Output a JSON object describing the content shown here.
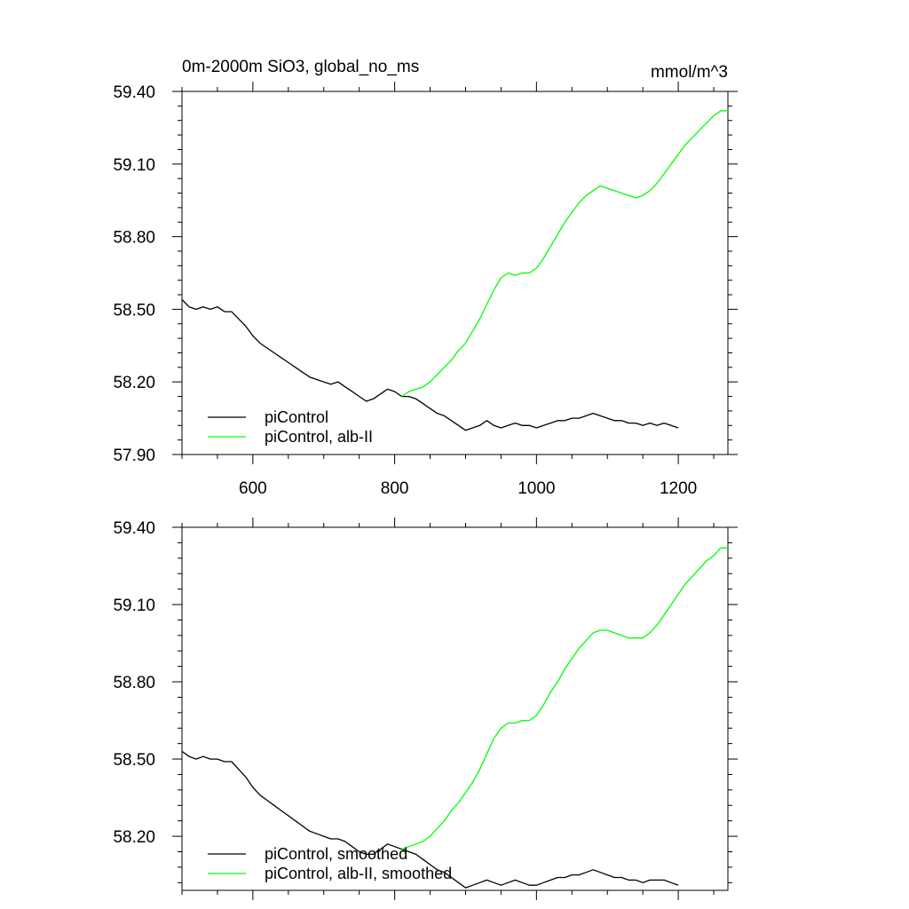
{
  "figure": {
    "title": "0m-2000m SiO3, global_no_ms",
    "units": "mmol/m^3"
  },
  "chart_data": [
    {
      "type": "line",
      "xlim": [
        500,
        1270
      ],
      "ylim": [
        57.9,
        59.4
      ],
      "x_ticks": [
        600,
        800,
        1000,
        1200
      ],
      "x_tick_labels": [
        "600",
        "800",
        "1000",
        "1200"
      ],
      "y_ticks": [
        57.9,
        58.2,
        58.5,
        58.8,
        59.1,
        59.4
      ],
      "y_tick_labels": [
        "57.90",
        "58.20",
        "58.50",
        "58.80",
        "59.10",
        "59.40"
      ],
      "grid": false,
      "legend_position": "bottom-left",
      "series": [
        {
          "name": "piControl",
          "color": "#000000",
          "x": [
            500,
            510,
            520,
            530,
            540,
            550,
            560,
            570,
            580,
            590,
            600,
            610,
            620,
            630,
            640,
            650,
            660,
            670,
            680,
            690,
            700,
            710,
            720,
            730,
            740,
            750,
            760,
            770,
            780,
            790,
            800,
            810,
            820,
            830,
            840,
            850,
            860,
            870,
            880,
            890,
            900,
            910,
            920,
            930,
            940,
            950,
            960,
            970,
            980,
            990,
            1000,
            1010,
            1020,
            1030,
            1040,
            1050,
            1060,
            1070,
            1080,
            1090,
            1100,
            1110,
            1120,
            1130,
            1140,
            1150,
            1160,
            1170,
            1180,
            1190,
            1200
          ],
          "y": [
            58.54,
            58.51,
            58.5,
            58.51,
            58.5,
            58.51,
            58.49,
            58.49,
            58.46,
            58.43,
            58.39,
            58.36,
            58.34,
            58.32,
            58.3,
            58.28,
            58.26,
            58.24,
            58.22,
            58.21,
            58.2,
            58.19,
            58.2,
            58.18,
            58.16,
            58.14,
            58.12,
            58.13,
            58.15,
            58.17,
            58.16,
            58.14,
            58.14,
            58.13,
            58.11,
            58.09,
            58.07,
            58.06,
            58.04,
            58.02,
            58.0,
            58.01,
            58.02,
            58.04,
            58.02,
            58.01,
            58.02,
            58.03,
            58.02,
            58.02,
            58.01,
            58.02,
            58.03,
            58.04,
            58.04,
            58.05,
            58.05,
            58.06,
            58.07,
            58.06,
            58.05,
            58.04,
            58.04,
            58.03,
            58.03,
            58.02,
            58.03,
            58.02,
            58.03,
            58.02,
            58.01
          ]
        },
        {
          "name": "piControl, alb-II",
          "color": "#00ff00",
          "x": [
            810,
            820,
            830,
            840,
            850,
            860,
            870,
            880,
            890,
            900,
            910,
            920,
            930,
            940,
            950,
            960,
            970,
            980,
            990,
            1000,
            1010,
            1020,
            1030,
            1040,
            1050,
            1060,
            1070,
            1080,
            1090,
            1100,
            1110,
            1120,
            1130,
            1140,
            1150,
            1160,
            1170,
            1180,
            1190,
            1200,
            1210,
            1220,
            1230,
            1240,
            1250,
            1260,
            1270
          ],
          "y": [
            58.14,
            58.16,
            58.17,
            58.18,
            58.2,
            58.23,
            58.26,
            58.29,
            58.33,
            58.36,
            58.41,
            58.46,
            58.52,
            58.58,
            58.63,
            58.65,
            58.64,
            58.65,
            58.65,
            58.67,
            58.71,
            58.76,
            58.81,
            58.86,
            58.9,
            58.94,
            58.97,
            58.99,
            59.01,
            59.0,
            58.99,
            58.98,
            58.97,
            58.96,
            58.97,
            58.99,
            59.02,
            59.06,
            59.1,
            59.14,
            59.18,
            59.21,
            59.24,
            59.27,
            59.3,
            59.32,
            59.32
          ]
        }
      ],
      "legend": [
        "piControl",
        "piControl, alb-II"
      ]
    },
    {
      "type": "line",
      "xlim": [
        500,
        1270
      ],
      "ylim": [
        57.99,
        59.4
      ],
      "x_ticks": [
        600,
        800,
        1000,
        1200
      ],
      "x_tick_labels": [],
      "y_ticks": [
        58.2,
        58.5,
        58.8,
        59.1,
        59.4
      ],
      "y_tick_labels": [
        "58.20",
        "58.50",
        "58.80",
        "59.10",
        "59.40"
      ],
      "grid": false,
      "legend_position": "bottom-left",
      "series": [
        {
          "name": "piControl, smoothed",
          "color": "#000000",
          "x": [
            500,
            510,
            520,
            530,
            540,
            550,
            560,
            570,
            580,
            590,
            600,
            610,
            620,
            630,
            640,
            650,
            660,
            670,
            680,
            690,
            700,
            710,
            720,
            730,
            740,
            750,
            760,
            770,
            780,
            790,
            800,
            810,
            820,
            830,
            840,
            850,
            860,
            870,
            880,
            890,
            900,
            910,
            920,
            930,
            940,
            950,
            960,
            970,
            980,
            990,
            1000,
            1010,
            1020,
            1030,
            1040,
            1050,
            1060,
            1070,
            1080,
            1090,
            1100,
            1110,
            1120,
            1130,
            1140,
            1150,
            1160,
            1170,
            1180,
            1190,
            1200
          ],
          "y": [
            58.53,
            58.51,
            58.5,
            58.51,
            58.5,
            58.5,
            58.49,
            58.49,
            58.46,
            58.43,
            58.39,
            58.36,
            58.34,
            58.32,
            58.3,
            58.28,
            58.26,
            58.24,
            58.22,
            58.21,
            58.2,
            58.19,
            58.19,
            58.18,
            58.16,
            58.14,
            58.13,
            58.13,
            58.15,
            58.17,
            58.16,
            58.15,
            58.14,
            58.13,
            58.11,
            58.09,
            58.07,
            58.06,
            58.04,
            58.02,
            58.0,
            58.01,
            58.02,
            58.03,
            58.02,
            58.01,
            58.02,
            58.03,
            58.02,
            58.01,
            58.01,
            58.02,
            58.03,
            58.04,
            58.04,
            58.05,
            58.05,
            58.06,
            58.07,
            58.06,
            58.05,
            58.04,
            58.04,
            58.03,
            58.03,
            58.02,
            58.03,
            58.03,
            58.03,
            58.02,
            58.01
          ]
        },
        {
          "name": "piControl, alb-II, smoothed",
          "color": "#00ff00",
          "x": [
            810,
            820,
            830,
            840,
            850,
            860,
            870,
            880,
            890,
            900,
            910,
            920,
            930,
            940,
            950,
            960,
            970,
            980,
            990,
            1000,
            1010,
            1020,
            1030,
            1040,
            1050,
            1060,
            1070,
            1080,
            1090,
            1100,
            1110,
            1120,
            1130,
            1140,
            1150,
            1160,
            1170,
            1180,
            1190,
            1200,
            1210,
            1220,
            1230,
            1240,
            1250,
            1260,
            1270
          ],
          "y": [
            58.15,
            58.16,
            58.17,
            58.18,
            58.2,
            58.23,
            58.26,
            58.3,
            58.33,
            58.37,
            58.41,
            58.46,
            58.52,
            58.58,
            58.62,
            58.64,
            58.64,
            58.65,
            58.65,
            58.67,
            58.71,
            58.76,
            58.8,
            58.85,
            58.89,
            58.93,
            58.96,
            58.99,
            59.0,
            59.0,
            58.99,
            58.98,
            58.97,
            58.97,
            58.97,
            58.99,
            59.02,
            59.06,
            59.1,
            59.14,
            59.18,
            59.21,
            59.24,
            59.27,
            59.29,
            59.32,
            59.32
          ]
        }
      ],
      "legend": [
        "piControl, smoothed",
        "piControl, alb-II, smoothed"
      ]
    }
  ]
}
